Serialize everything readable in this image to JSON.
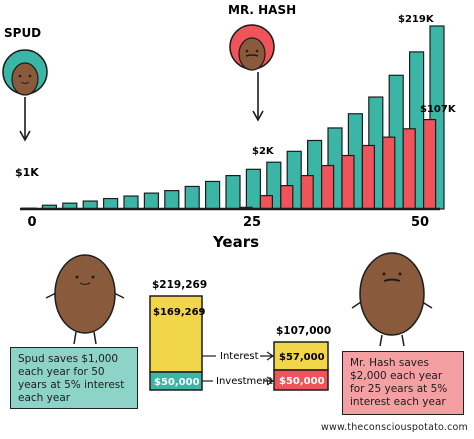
{
  "chart_data": {
    "type": "bar",
    "xlabel": "Years",
    "x_ticks": [
      "0",
      "25",
      "50"
    ],
    "series": [
      {
        "values": [
          1,
          4.5,
          7,
          9.5,
          12.5,
          15.5,
          19,
          22,
          27,
          33,
          40,
          47.5,
          56,
          69,
          82,
          97,
          114,
          134,
          160,
          188,
          219
        ]
      },
      {
        "values": [
          null,
          null,
          null,
          null,
          null,
          null,
          null,
          null,
          null,
          null,
          2,
          16,
          28,
          40,
          52,
          64,
          76,
          86,
          96,
          107
        ]
      }
    ],
    "annotations": {
      "spud_start": "$1K",
      "hash_start": "$2K",
      "spud_end": "$219K",
      "hash_end": "$107K"
    },
    "colors": {
      "spud": "#3bb5a5",
      "hash": "#f0545a",
      "gold": "#f2d64a"
    }
  },
  "characters": {
    "spud": {
      "name": "SPUD"
    },
    "hash": {
      "name": "MR. HASH"
    }
  },
  "comparison": {
    "left_total": "$219,269",
    "left_interest": "$169,269",
    "left_investment": "$50,000",
    "right_total": "$107,000",
    "right_interest": "$57,000",
    "right_investment": "$50,000",
    "interest_label": "Interest",
    "investment_label": "Investment",
    "values": {
      "left_interest": 169269,
      "left_investment": 50000,
      "right_interest": 57000,
      "right_investment": 50000
    }
  },
  "notes": {
    "spud": "Spud saves $1,000 each year for 50 years at 5% interest each year",
    "hash": "Mr. Hash saves $2,000 each year for 25 years at 5% interest each year"
  },
  "footer": "www.theconsciouspotato.com"
}
